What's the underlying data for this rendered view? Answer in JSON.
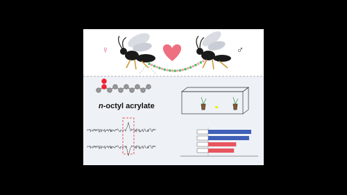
{
  "header": {
    "female_symbol": "♀",
    "male_symbol": "♂"
  },
  "compound": {
    "name_prefix": "n",
    "name_rest": "-octyl acrylate"
  },
  "chart_data": {
    "type": "bar",
    "orientation": "horizontal",
    "categories": [
      null,
      null,
      null,
      null
    ],
    "values": [
      100,
      95,
      65,
      60
    ],
    "colors": [
      "#3f5fb8",
      "#3f5fb8",
      "#e8555f",
      "#e8555f"
    ],
    "xlim": [
      0,
      100
    ]
  }
}
